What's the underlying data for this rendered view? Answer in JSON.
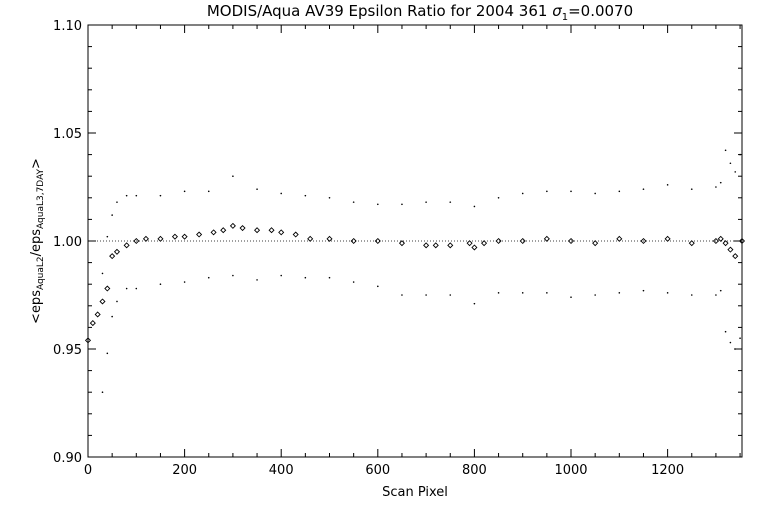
{
  "chart_data": {
    "type": "scatter",
    "title_main": "MODIS/Aqua AV39 Epsilon Ratio for 2004 361 ",
    "title_sigma": "σ",
    "title_sigma_sub": "1",
    "title_value": "=0.0070",
    "xlabel": "Scan Pixel",
    "ylabel_open": "<eps",
    "ylabel_sub1": "AquaL2",
    "ylabel_mid": "/eps",
    "ylabel_sub2": "AquaL3,7DAY",
    "ylabel_close": ">",
    "xlim": [
      0,
      1354
    ],
    "ylim": [
      0.9,
      1.1
    ],
    "x_ticks": [
      0,
      200,
      400,
      600,
      800,
      1000,
      1200
    ],
    "x_tick_labels": [
      "0",
      "200",
      "400",
      "600",
      "800",
      "1000",
      "1200"
    ],
    "y_ticks": [
      0.9,
      0.95,
      1.0,
      1.05,
      1.1
    ],
    "y_tick_labels": [
      "0.90",
      "0.95",
      "1.00",
      "1.05",
      "1.10"
    ],
    "reference_line": 1.0,
    "grid": false,
    "series": [
      {
        "role": "mean",
        "x": [
          0,
          10,
          20,
          30,
          40,
          50,
          60,
          80,
          100,
          120,
          150,
          180,
          200,
          230,
          260,
          280,
          300,
          320,
          350,
          380,
          400,
          430,
          460,
          500,
          550,
          600,
          650,
          700,
          720,
          750,
          790,
          800,
          820,
          850,
          900,
          950,
          1000,
          1050,
          1100,
          1150,
          1200,
          1250,
          1300,
          1310,
          1320,
          1330,
          1340,
          1354
        ],
        "y": [
          0.954,
          0.962,
          0.966,
          0.972,
          0.978,
          0.993,
          0.995,
          0.998,
          1.0,
          1.001,
          1.001,
          1.002,
          1.002,
          1.003,
          1.004,
          1.005,
          1.007,
          1.006,
          1.005,
          1.005,
          1.004,
          1.003,
          1.001,
          1.001,
          1.0,
          1.0,
          0.999,
          0.998,
          0.998,
          0.998,
          0.999,
          0.997,
          0.999,
          1.0,
          1.0,
          1.001,
          1.0,
          0.999,
          1.001,
          1.0,
          1.001,
          0.999,
          1.0,
          1.001,
          0.999,
          0.996,
          0.993,
          1.0
        ]
      },
      {
        "role": "upper",
        "x": [
          30,
          40,
          50,
          60,
          80,
          100,
          150,
          200,
          250,
          300,
          350,
          400,
          450,
          500,
          550,
          600,
          650,
          700,
          750,
          800,
          850,
          900,
          950,
          1000,
          1050,
          1100,
          1150,
          1200,
          1250,
          1300,
          1310,
          1320,
          1330,
          1340,
          1350
        ],
        "y": [
          0.985,
          1.002,
          1.012,
          1.018,
          1.021,
          1.021,
          1.021,
          1.023,
          1.023,
          1.03,
          1.024,
          1.022,
          1.021,
          1.02,
          1.018,
          1.017,
          1.017,
          1.018,
          1.018,
          1.016,
          1.02,
          1.022,
          1.023,
          1.023,
          1.022,
          1.023,
          1.024,
          1.026,
          1.024,
          1.025,
          1.027,
          1.042,
          1.036,
          1.032,
          1.04
        ]
      },
      {
        "role": "lower",
        "x": [
          30,
          40,
          50,
          60,
          80,
          100,
          150,
          200,
          250,
          300,
          350,
          400,
          450,
          500,
          550,
          600,
          650,
          700,
          750,
          800,
          850,
          900,
          950,
          1000,
          1050,
          1100,
          1150,
          1200,
          1250,
          1300,
          1310,
          1320,
          1330,
          1340,
          1350
        ],
        "y": [
          0.93,
          0.948,
          0.965,
          0.972,
          0.978,
          0.978,
          0.98,
          0.981,
          0.983,
          0.984,
          0.982,
          0.984,
          0.983,
          0.983,
          0.981,
          0.979,
          0.975,
          0.975,
          0.975,
          0.971,
          0.976,
          0.976,
          0.976,
          0.974,
          0.975,
          0.976,
          0.977,
          0.976,
          0.975,
          0.975,
          0.977,
          0.958,
          0.953,
          0.95,
          0.955
        ]
      }
    ]
  }
}
